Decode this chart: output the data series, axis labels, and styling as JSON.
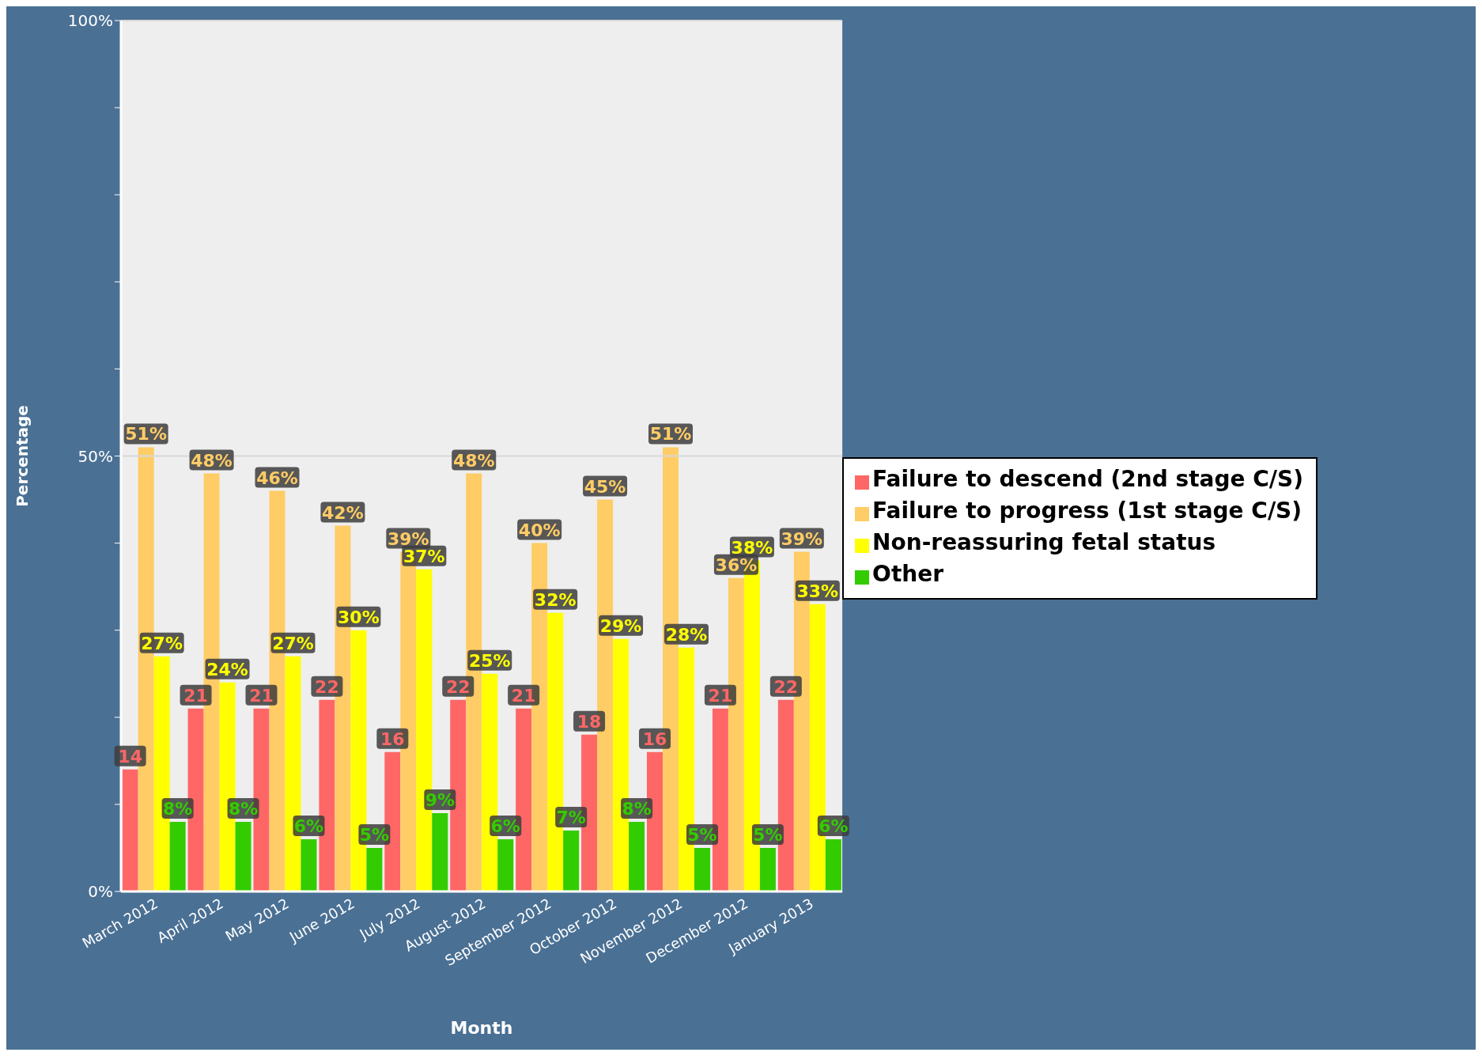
{
  "chart_data": {
    "type": "bar",
    "xlabel": "Month",
    "ylabel": "Percentage",
    "categories": [
      "March 2012",
      "April 2012",
      "May 2012",
      "June 2012",
      "July 2012",
      "August 2012",
      "September 2012",
      "October 2012",
      "November 2012",
      "December 2012",
      "January 2013"
    ],
    "series": [
      {
        "name": "Failure to descend (2nd stage C/S)",
        "color": "#ff6666",
        "values": [
          14,
          21,
          21,
          22,
          16,
          22,
          21,
          18,
          16,
          21,
          22
        ],
        "value_labels": [
          "14",
          "21",
          "21",
          "22",
          "16",
          "22",
          "21",
          "18",
          "16",
          "21",
          "22"
        ]
      },
      {
        "name": "Failure to progress (1st stage C/S)",
        "color": "#ffcc66",
        "values": [
          51,
          48,
          46,
          42,
          39,
          48,
          40,
          45,
          51,
          36,
          39
        ],
        "value_labels": [
          "51%",
          "48%",
          "46%",
          "42%",
          "39%",
          "48%",
          "40%",
          "45%",
          "51%",
          "36%",
          "39%"
        ]
      },
      {
        "name": "Non-reassuring fetal status",
        "color": "#ffff00",
        "values": [
          27,
          24,
          27,
          30,
          37,
          25,
          32,
          29,
          28,
          38,
          33
        ],
        "value_labels": [
          "27%",
          "24%",
          "27%",
          "30%",
          "37%",
          "25%",
          "32%",
          "29%",
          "28%",
          "38%",
          "33%"
        ]
      },
      {
        "name": "Other",
        "color": "#33cc00",
        "values": [
          8,
          8,
          6,
          5,
          9,
          6,
          7,
          8,
          5,
          5,
          6
        ],
        "value_labels": [
          "8%",
          "8%",
          "6%",
          "5%",
          "9%",
          "6%",
          "7%",
          "8%",
          "5%",
          "5%",
          "6%"
        ]
      }
    ],
    "ylim": [
      0,
      100
    ],
    "yticks": [
      {
        "value": 0,
        "label": "0%"
      },
      {
        "value": 10,
        "label": null
      },
      {
        "value": 20,
        "label": null
      },
      {
        "value": 30,
        "label": null
      },
      {
        "value": 40,
        "label": null
      },
      {
        "value": 50,
        "label": "50%"
      },
      {
        "value": 60,
        "label": null
      },
      {
        "value": 70,
        "label": null
      },
      {
        "value": 80,
        "label": null
      },
      {
        "value": 90,
        "label": null
      },
      {
        "value": 100,
        "label": "100%"
      }
    ],
    "grid": "y",
    "legend": "right"
  }
}
